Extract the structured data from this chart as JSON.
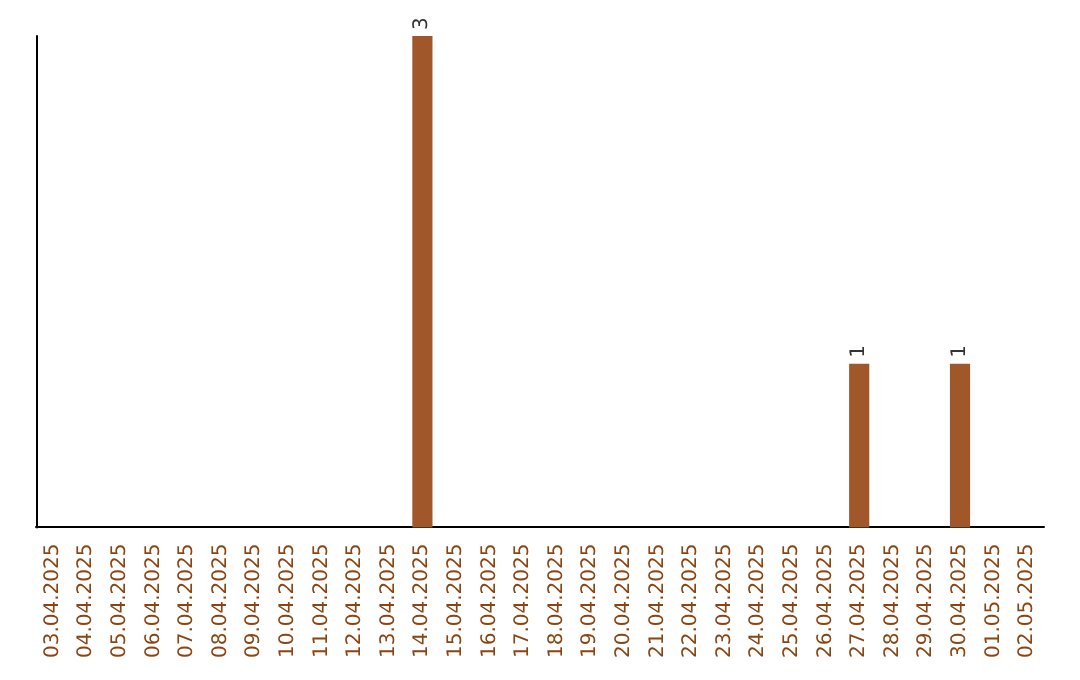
{
  "chart_data": {
    "type": "bar",
    "categories": [
      "03.04.2025",
      "04.04.2025",
      "05.04.2025",
      "06.04.2025",
      "07.04.2025",
      "08.04.2025",
      "09.04.2025",
      "10.04.2025",
      "11.04.2025",
      "12.04.2025",
      "13.04.2025",
      "14.04.2025",
      "15.04.2025",
      "16.04.2025",
      "17.04.2025",
      "18.04.2025",
      "19.04.2025",
      "20.04.2025",
      "21.04.2025",
      "22.04.2025",
      "23.04.2025",
      "24.04.2025",
      "25.04.2025",
      "26.04.2025",
      "27.04.2025",
      "28.04.2025",
      "29.04.2025",
      "30.04.2025",
      "01.05.2025",
      "02.05.2025"
    ],
    "values": [
      0,
      0,
      0,
      0,
      0,
      0,
      0,
      0,
      0,
      0,
      0,
      3,
      0,
      0,
      0,
      0,
      0,
      0,
      0,
      0,
      0,
      0,
      0,
      0,
      1,
      0,
      0,
      1,
      0,
      0
    ],
    "value_labels": [
      null,
      null,
      null,
      null,
      null,
      null,
      null,
      null,
      null,
      null,
      null,
      "3",
      null,
      null,
      null,
      null,
      null,
      null,
      null,
      null,
      null,
      null,
      null,
      null,
      "1",
      null,
      null,
      "1",
      null,
      null
    ],
    "color": "#a0572a",
    "tick_labels": "x",
    "grid": false
  }
}
